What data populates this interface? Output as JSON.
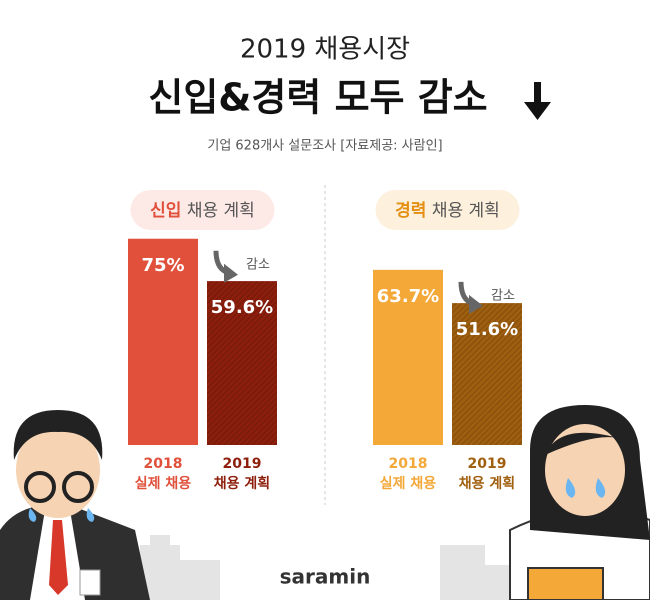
{
  "header": {
    "title": "2019 채용시장",
    "headline": "신입&경력 모두 감소",
    "subtitle": "기업 628개사 설문조사  [자료제공: 사람인]"
  },
  "chart_data": [
    {
      "type": "bar",
      "title": {
        "highlight": "신입",
        "rest": "채용 계획"
      },
      "categories": [
        [
          "2018",
          "실제 채용"
        ],
        [
          "2019",
          "채용 계획"
        ]
      ],
      "values": [
        75,
        59.6
      ],
      "value_labels": [
        "75%",
        "59.6%"
      ],
      "colors": [
        "#e0503a",
        "#8e1f0d"
      ],
      "annotation": "감소"
    },
    {
      "type": "bar",
      "title": {
        "highlight": "경력",
        "rest": "채용 계획"
      },
      "categories": [
        [
          "2018",
          "실제 채용"
        ],
        [
          "2019",
          "채용 계획"
        ]
      ],
      "values": [
        63.7,
        51.6
      ],
      "value_labels": [
        "63.7%",
        "51.6%"
      ],
      "colors": [
        "#f3a838",
        "#a1600f"
      ],
      "annotation": "감소"
    }
  ],
  "footer": {
    "logo": "saramin"
  }
}
